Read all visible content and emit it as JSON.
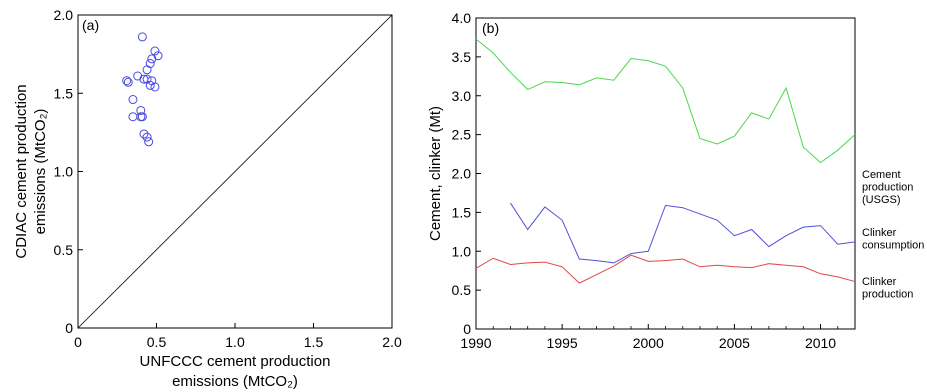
{
  "chart_data": [
    {
      "type": "scatter",
      "panel_label": "(a)",
      "xlabel_lines": [
        "UNFCCC cement production",
        "emissions (MtCO₂)"
      ],
      "ylabel_lines": [
        "CDIAC cement production",
        "emissions (MtCO₂)"
      ],
      "xlim": [
        0,
        2.0
      ],
      "ylim": [
        0,
        2.0
      ],
      "xticks": [
        0,
        0.5,
        1.0,
        1.5,
        2.0
      ],
      "xtick_labels": [
        "0",
        "0.5",
        "1.0",
        "1.5",
        "2.0"
      ],
      "yticks": [
        0,
        0.5,
        1.0,
        1.5,
        2.0
      ],
      "ytick_labels": [
        "0",
        "0.5",
        "1.0",
        "1.5",
        "2.0"
      ],
      "reference_line": "1:1",
      "marker": "open-circle",
      "color": "#4a4ae0",
      "points": [
        {
          "x": 0.41,
          "y": 1.86
        },
        {
          "x": 0.49,
          "y": 1.77
        },
        {
          "x": 0.51,
          "y": 1.74
        },
        {
          "x": 0.47,
          "y": 1.72
        },
        {
          "x": 0.46,
          "y": 1.69
        },
        {
          "x": 0.44,
          "y": 1.65
        },
        {
          "x": 0.38,
          "y": 1.61
        },
        {
          "x": 0.42,
          "y": 1.59
        },
        {
          "x": 0.44,
          "y": 1.59
        },
        {
          "x": 0.47,
          "y": 1.58
        },
        {
          "x": 0.31,
          "y": 1.58
        },
        {
          "x": 0.32,
          "y": 1.57
        },
        {
          "x": 0.46,
          "y": 1.55
        },
        {
          "x": 0.49,
          "y": 1.54
        },
        {
          "x": 0.35,
          "y": 1.46
        },
        {
          "x": 0.4,
          "y": 1.39
        },
        {
          "x": 0.35,
          "y": 1.35
        },
        {
          "x": 0.4,
          "y": 1.35
        },
        {
          "x": 0.41,
          "y": 1.35
        },
        {
          "x": 0.42,
          "y": 1.24
        },
        {
          "x": 0.44,
          "y": 1.22
        },
        {
          "x": 0.45,
          "y": 1.19
        }
      ]
    },
    {
      "type": "line",
      "panel_label": "(b)",
      "xlabel": "",
      "ylabel": "Cement, clinker (Mt)",
      "xlim": [
        1990,
        2012
      ],
      "ylim": [
        0,
        4.0
      ],
      "xticks": [
        1990,
        1995,
        2000,
        2005,
        2010
      ],
      "xtick_labels": [
        "1990",
        "1995",
        "2000",
        "2005",
        "2010"
      ],
      "yticks": [
        0,
        0.5,
        1.0,
        1.5,
        2.0,
        2.5,
        3.0,
        3.5,
        4.0
      ],
      "ytick_labels": [
        "0",
        "0.5",
        "1.0",
        "1.5",
        "2.0",
        "2.5",
        "3.0",
        "3.5",
        "4.0"
      ],
      "series": [
        {
          "annotation_lines": [
            "Cement",
            "production",
            "(USGS)"
          ],
          "color": "#4cd84c",
          "x": [
            1990,
            1991,
            1992,
            1993,
            1994,
            1995,
            1996,
            1997,
            1998,
            1999,
            2000,
            2001,
            2002,
            2003,
            2004,
            2005,
            2006,
            2007,
            2008,
            2009,
            2010,
            2011,
            2012
          ],
          "values": [
            3.73,
            3.55,
            3.3,
            3.08,
            3.18,
            3.17,
            3.14,
            3.23,
            3.2,
            3.48,
            3.45,
            3.38,
            3.1,
            2.45,
            2.38,
            2.48,
            2.78,
            2.7,
            3.1,
            2.34,
            2.14,
            2.3,
            2.5
          ]
        },
        {
          "annotation_lines": [
            "Clinker",
            "consumption"
          ],
          "color": "#5050d8",
          "x": [
            1992,
            1993,
            1994,
            1995,
            1996,
            1997,
            1998,
            1999,
            2000,
            2001,
            2002,
            2003,
            2004,
            2005,
            2006,
            2007,
            2008,
            2009,
            2010,
            2011,
            2012
          ],
          "values": [
            1.62,
            1.28,
            1.57,
            1.4,
            0.9,
            0.88,
            0.85,
            0.97,
            1.0,
            1.59,
            1.56,
            1.48,
            1.4,
            1.2,
            1.28,
            1.06,
            1.2,
            1.31,
            1.33,
            1.09,
            1.12
          ]
        },
        {
          "annotation_lines": [
            "Clinker",
            "production"
          ],
          "color": "#e04848",
          "x": [
            1990,
            1991,
            1992,
            1993,
            1994,
            1995,
            1996,
            1997,
            1998,
            1999,
            2000,
            2001,
            2002,
            2003,
            2004,
            2005,
            2006,
            2007,
            2008,
            2009,
            2010,
            2011,
            2012
          ],
          "values": [
            0.78,
            0.91,
            0.83,
            0.85,
            0.86,
            0.8,
            0.59,
            0.7,
            0.81,
            0.95,
            0.87,
            0.88,
            0.9,
            0.8,
            0.82,
            0.8,
            0.79,
            0.84,
            0.82,
            0.8,
            0.71,
            0.67,
            0.61
          ]
        }
      ]
    }
  ]
}
